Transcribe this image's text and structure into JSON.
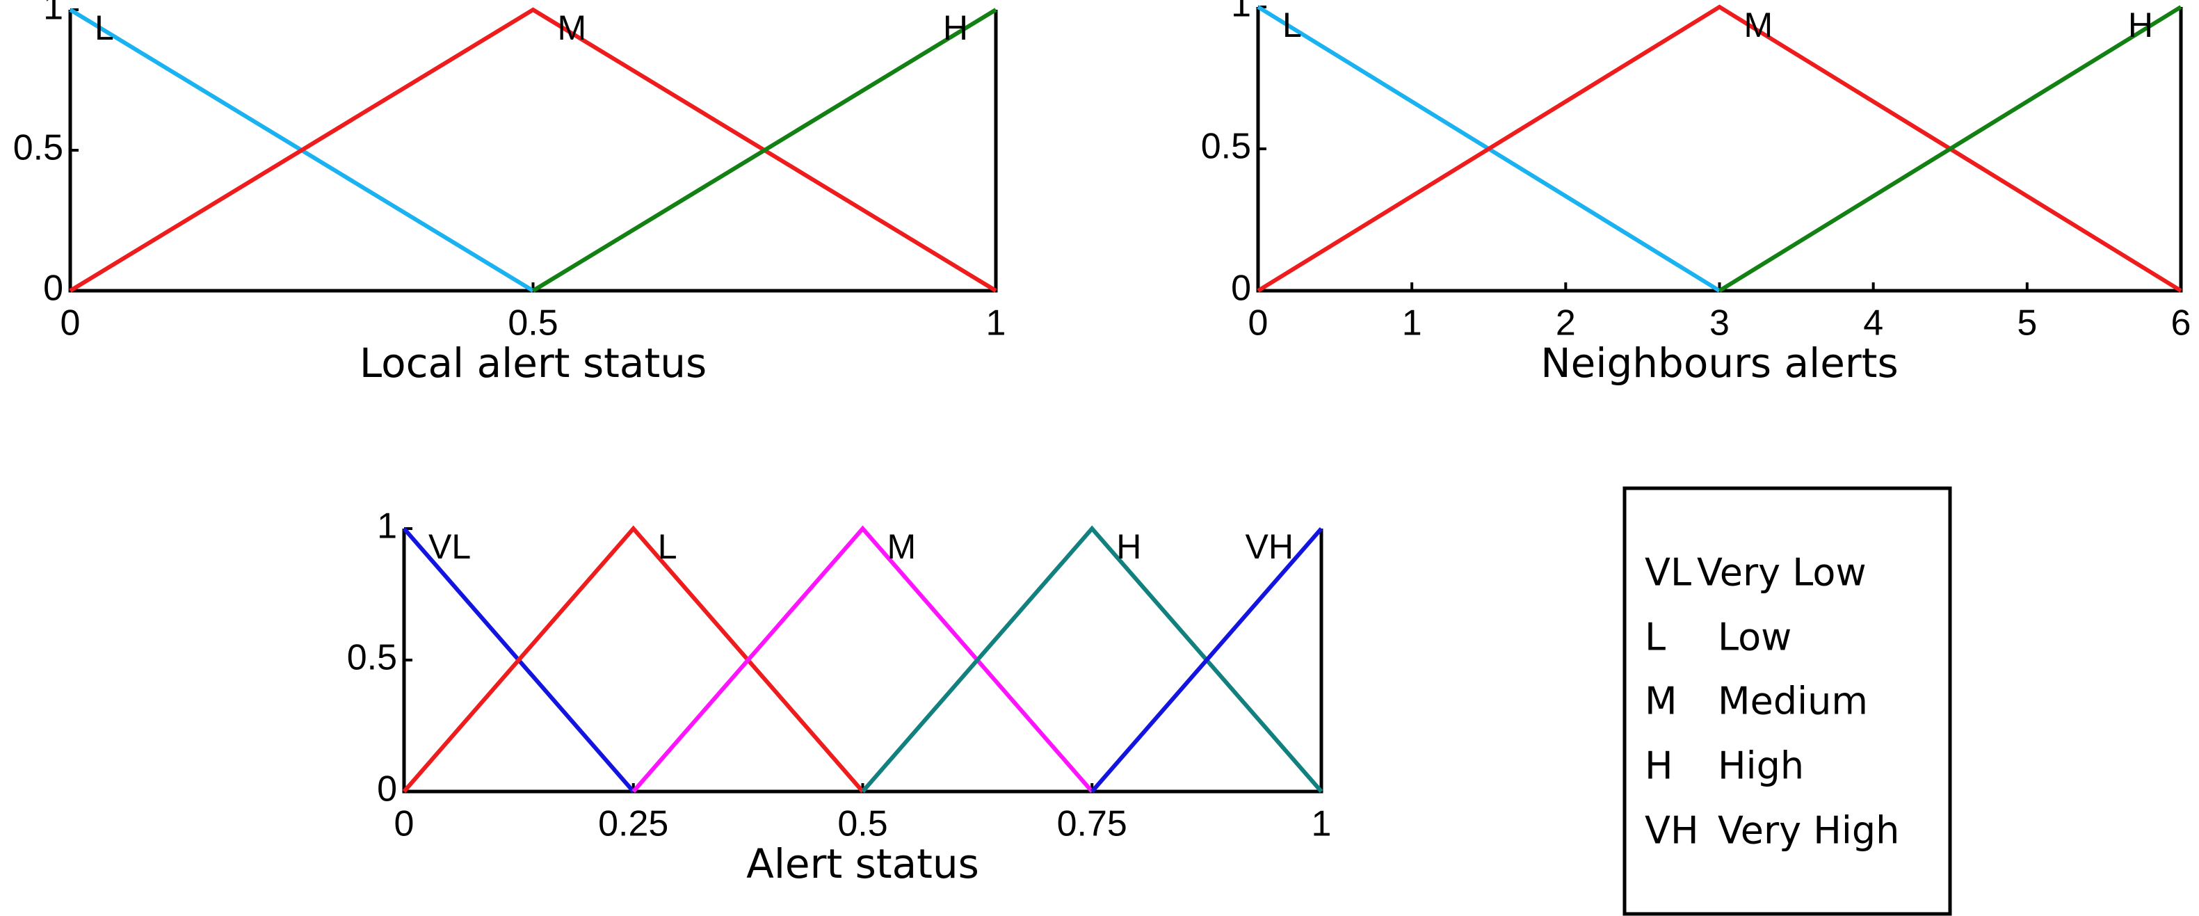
{
  "chart_data": [
    {
      "type": "line",
      "xlabel": "Local alert status",
      "x": [
        0,
        0.5,
        1
      ],
      "series": [
        {
          "name": "L",
          "color": "#1ab2f0",
          "values": [
            1,
            0,
            null
          ]
        },
        {
          "name": "M",
          "color": "#ee1c1c",
          "values": [
            0,
            1,
            0
          ]
        },
        {
          "name": "H",
          "color": "#138013",
          "values": [
            null,
            0,
            1
          ]
        }
      ],
      "xlim": [
        0,
        1
      ],
      "xticks": [
        0,
        0.5,
        1
      ],
      "ylim": [
        0,
        1
      ],
      "yticks": [
        0,
        0.5,
        1
      ]
    },
    {
      "type": "line",
      "xlabel": "Neighbours alerts",
      "x": [
        0,
        3,
        6
      ],
      "series": [
        {
          "name": "L",
          "color": "#1ab2f0",
          "values": [
            1,
            0,
            null
          ]
        },
        {
          "name": "M",
          "color": "#ee1c1c",
          "values": [
            0,
            1,
            0
          ]
        },
        {
          "name": "H",
          "color": "#138013",
          "values": [
            null,
            0,
            1
          ]
        }
      ],
      "xlim": [
        0,
        6
      ],
      "xticks": [
        0,
        1,
        2,
        3,
        4,
        5,
        6
      ],
      "ylim": [
        0,
        1
      ],
      "yticks": [
        0,
        0.5,
        1
      ]
    },
    {
      "type": "line",
      "xlabel": "Alert status",
      "x": [
        0,
        0.25,
        0.5,
        0.75,
        1
      ],
      "series": [
        {
          "name": "VL",
          "color": "#1414e0",
          "values": [
            1,
            0,
            null,
            null,
            null
          ]
        },
        {
          "name": "L",
          "color": "#ee1c1c",
          "values": [
            0,
            1,
            0,
            null,
            null
          ]
        },
        {
          "name": "M",
          "color": "#ff14ff",
          "values": [
            null,
            0,
            1,
            0,
            null
          ]
        },
        {
          "name": "H",
          "color": "#138080",
          "values": [
            null,
            null,
            0,
            1,
            0
          ]
        },
        {
          "name": "VH",
          "color": "#1414e0",
          "values": [
            null,
            null,
            null,
            0,
            1
          ]
        }
      ],
      "xlim": [
        0,
        1
      ],
      "xticks": [
        0,
        0.25,
        0.5,
        0.75,
        1
      ],
      "ylim": [
        0,
        1
      ],
      "yticks": [
        0,
        0.5,
        1
      ]
    }
  ],
  "legend_box": [
    {
      "abbr": "VL",
      "label": "Very Low"
    },
    {
      "abbr": "L",
      "label": "Low"
    },
    {
      "abbr": "M",
      "label": "Medium"
    },
    {
      "abbr": "H",
      "label": "High"
    },
    {
      "abbr": "VH",
      "label": "Very High"
    }
  ]
}
